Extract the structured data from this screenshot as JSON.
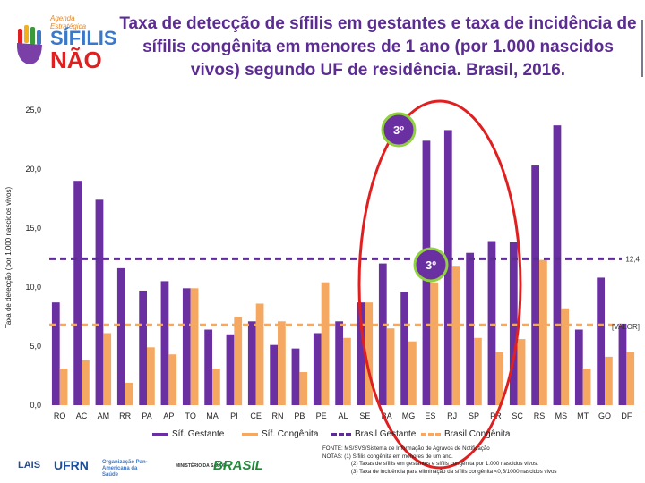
{
  "logo": {
    "tagline": "Agenda Estratégica",
    "word1": "SÍFILIS",
    "word2": "NÃO"
  },
  "title_lines": [
    "Taxa de detecção de sífilis em gestantes e taxa de incidência de",
    "sífilis congênita em menores de 1 ano (por 1.000 nascidos",
    "vivos) segundo UF de residência. Brasil, 2016."
  ],
  "chart_data": {
    "type": "bar",
    "ylabel": "Taxa de detecção (por 1.000 nascidos vivos)",
    "ylim": [
      0,
      25
    ],
    "yticks": [
      "0,0",
      "5,0",
      "10,0",
      "15,0",
      "20,0",
      "25,0"
    ],
    "categories": [
      "RO",
      "AC",
      "AM",
      "RR",
      "PA",
      "AP",
      "TO",
      "MA",
      "PI",
      "CE",
      "RN",
      "PB",
      "PE",
      "AL",
      "SE",
      "BA",
      "MG",
      "ES",
      "RJ",
      "SP",
      "PR",
      "SC",
      "RS",
      "MS",
      "MT",
      "GO",
      "DF"
    ],
    "series": [
      {
        "name": "Síf. Gestante",
        "color": "#6a2fa0",
        "values": [
          8.7,
          19.0,
          17.4,
          11.6,
          9.7,
          10.5,
          9.9,
          6.4,
          6.0,
          7.1,
          5.1,
          4.8,
          6.1,
          7.1,
          8.7,
          12.0,
          9.6,
          22.4,
          23.3,
          12.9,
          13.9,
          13.8,
          20.3,
          23.7,
          6.4,
          10.8,
          6.9
        ]
      },
      {
        "name": "Síf. Congênita",
        "color": "#f4a862",
        "values": [
          3.1,
          3.8,
          6.1,
          1.9,
          4.9,
          4.3,
          9.9,
          3.1,
          7.5,
          8.6,
          7.1,
          2.8,
          10.4,
          5.7,
          8.7,
          6.5,
          5.4,
          10.4,
          11.8,
          5.7,
          4.5,
          5.6,
          12.3,
          8.2,
          3.1,
          4.1,
          4.5
        ]
      }
    ],
    "reference_lines": [
      {
        "name": "Brasil Gestante",
        "value": 12.4,
        "label": "12,4",
        "color": "#5c2d91"
      },
      {
        "name": "Brasil Congênita",
        "value": 6.8,
        "label": "[VALOR]",
        "color": "#f4a862"
      }
    ],
    "annotations": [
      "3º",
      "3º"
    ]
  },
  "legend": {
    "gestante": "Síf. Gestante",
    "congenita": "Síf. Congênita",
    "brasil_gestante": "Brasil Gestante",
    "brasil_congenita": "Brasil Congênita"
  },
  "notes": {
    "fonte": "FONTE: MS/SVS/Sistema de Informação de Agravos de Notificação",
    "notas": "NOTAS: (1) Sífilis congênita em menores de um ano.",
    "n2": "(2) Taxas de sífilis em gestantes e sífilis congênita por 1.000 nascidos vivos.",
    "n3": "(3) Taxa de incidência para eliminação da sífilis congênita <0,5/1000 nascidos vivos"
  },
  "footer_logos": [
    "LAIS",
    "UFRN",
    "Organização Pan-Americana da Saúde",
    "MINISTÉRIO DA SAÚDE",
    "BRASIL"
  ]
}
